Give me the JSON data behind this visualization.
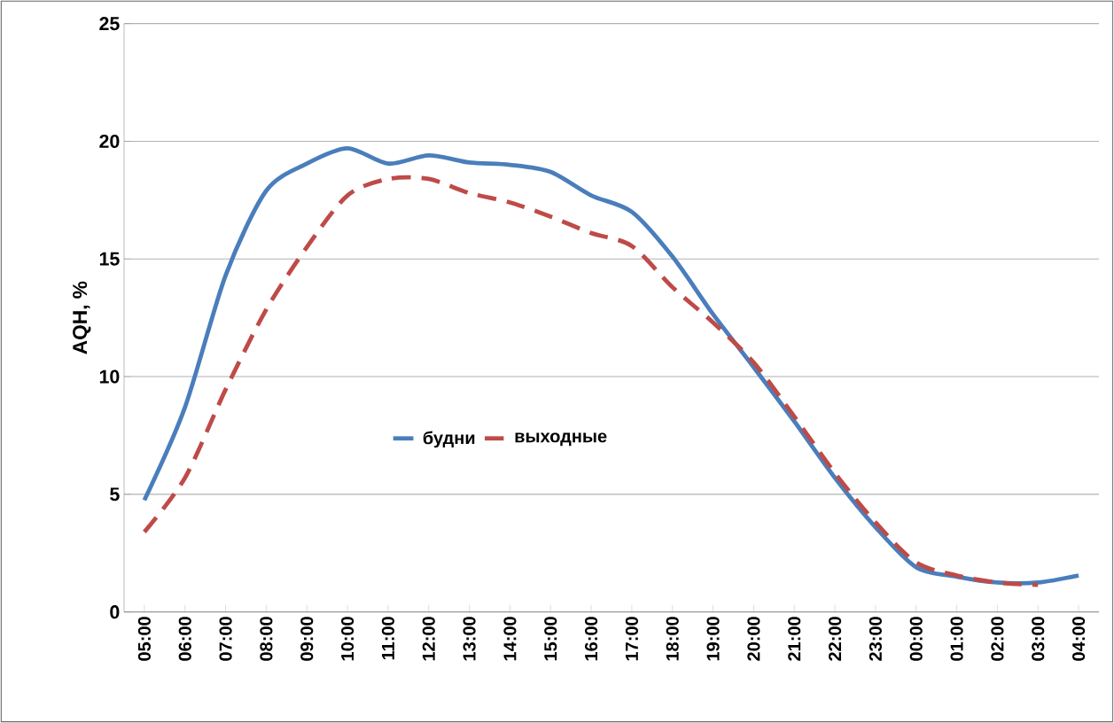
{
  "chart_data": {
    "type": "line",
    "ylabel": "AQH, %",
    "categories": [
      "05:00",
      "06:00",
      "07:00",
      "08:00",
      "09:00",
      "10:00",
      "11:00",
      "12:00",
      "13:00",
      "14:00",
      "15:00",
      "16:00",
      "17:00",
      "18:00",
      "19:00",
      "20:00",
      "21:00",
      "22:00",
      "23:00",
      "00:00",
      "01:00",
      "02:00",
      "03:00",
      "04:00"
    ],
    "series": [
      {
        "name": "будни",
        "color": "#4a7ebb",
        "line_style": "solid",
        "values": [
          4.75,
          8.7,
          14.3,
          17.9,
          19.05,
          19.7,
          19.05,
          19.4,
          19.1,
          19.0,
          18.7,
          17.7,
          17.0,
          15.1,
          12.65,
          10.4,
          8.1,
          5.7,
          3.6,
          1.9,
          1.5,
          1.25,
          1.25,
          1.55
        ]
      },
      {
        "name": "выходные",
        "color": "#be4b48",
        "line_style": "dashed",
        "values": [
          3.4,
          5.7,
          9.45,
          12.85,
          15.5,
          17.7,
          18.4,
          18.4,
          17.8,
          17.4,
          16.8,
          16.1,
          15.55,
          13.8,
          12.3,
          10.6,
          8.3,
          5.9,
          3.8,
          2.1,
          1.55,
          1.25,
          1.15,
          null
        ]
      }
    ],
    "ylim": [
      0,
      25
    ],
    "yticks": [
      0,
      5,
      10,
      15,
      20,
      25
    ],
    "grid": "y",
    "legend": "bottom",
    "marker": "none"
  }
}
